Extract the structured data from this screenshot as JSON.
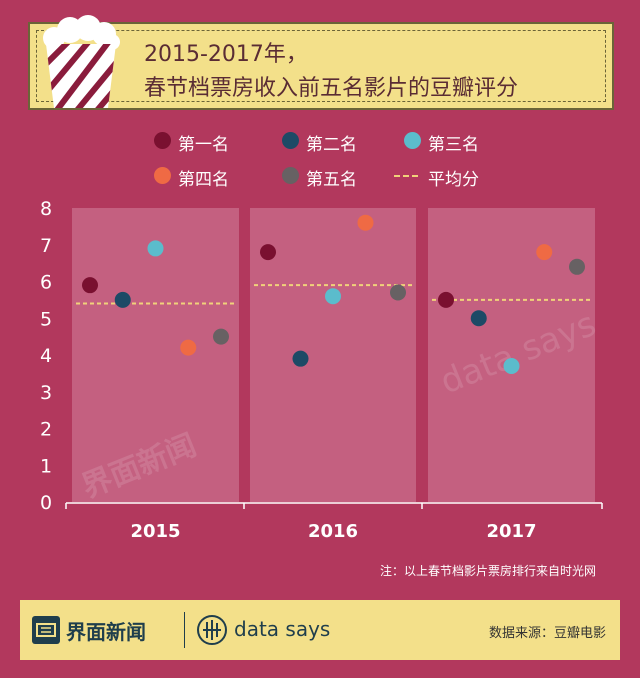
{
  "title": {
    "line1": "2015-2017年，",
    "line2": "春节档票房收入前五名影片的豆瓣评分"
  },
  "legend": [
    {
      "label": "第一名",
      "color": "#7a1030",
      "kind": "dot"
    },
    {
      "label": "第二名",
      "color": "#1d4a66",
      "kind": "dot"
    },
    {
      "label": "第三名",
      "color": "#5bbccc",
      "kind": "dot"
    },
    {
      "label": "第四名",
      "color": "#ef6a44",
      "kind": "dot"
    },
    {
      "label": "第五名",
      "color": "#676163",
      "kind": "dot"
    },
    {
      "label": "平均分",
      "color": "#f0d27a",
      "kind": "dash"
    }
  ],
  "chart_data": {
    "type": "scatter",
    "categories": [
      "2015",
      "2016",
      "2017"
    ],
    "ylim": [
      0,
      8
    ],
    "yticks": [
      "0",
      "1",
      "2",
      "3",
      "4",
      "5",
      "6",
      "7",
      "8"
    ],
    "series": [
      {
        "name": "第一名",
        "color": "#7a1030",
        "values": [
          5.9,
          6.8,
          5.5
        ]
      },
      {
        "name": "第二名",
        "color": "#1d4a66",
        "values": [
          5.5,
          3.9,
          5.0
        ]
      },
      {
        "name": "第三名",
        "color": "#5bbccc",
        "values": [
          6.9,
          5.6,
          3.7
        ]
      },
      {
        "name": "第四名",
        "color": "#ef6a44",
        "values": [
          4.2,
          7.6,
          6.8
        ]
      },
      {
        "name": "第五名",
        "color": "#676163",
        "values": [
          4.5,
          5.7,
          6.4
        ]
      }
    ],
    "average": {
      "name": "平均分",
      "values": [
        5.4,
        5.9,
        5.5
      ]
    }
  },
  "footnote": "注：以上春节档影片票房排行来自时光网",
  "footer": {
    "brand_cn": "界面新闻",
    "brand_en": "data says",
    "source": "数据来源：豆瓣电影"
  },
  "watermark": {
    "cn": "界面新闻",
    "en": "data says"
  },
  "colors": {
    "background": "#b2385d",
    "panel": "#c46080",
    "title_bg": "#f3e08a",
    "title_text": "#5a2c34",
    "footer_text": "#1f3e4c"
  }
}
